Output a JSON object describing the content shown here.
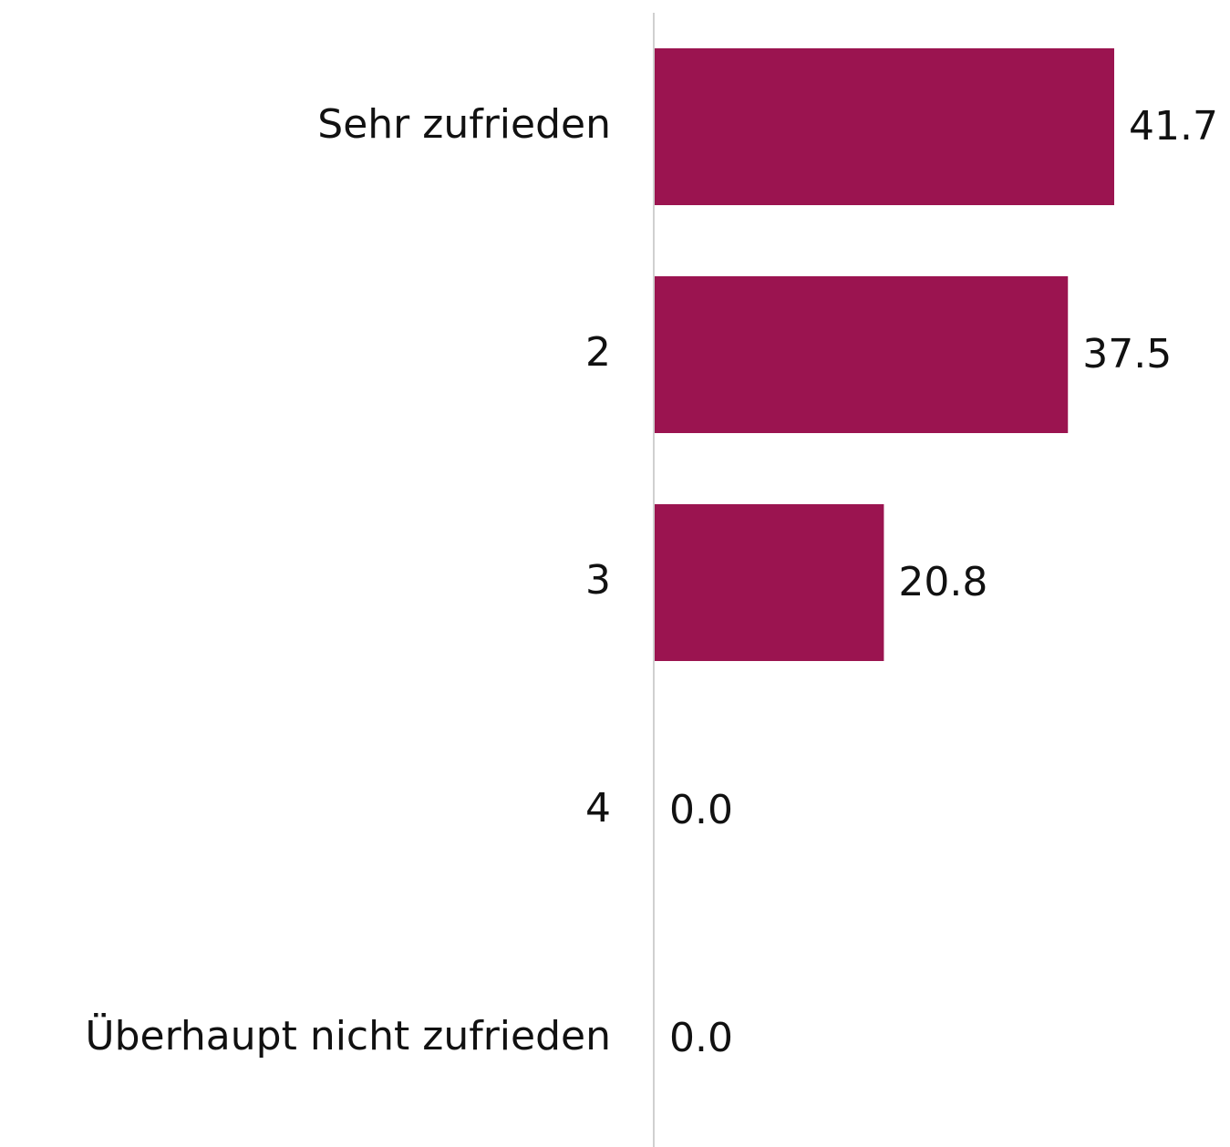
{
  "chart_data": {
    "type": "barh",
    "categories": [
      "Sehr zufrieden",
      "2",
      "3",
      "4",
      "Überhaupt nicht zufrieden"
    ],
    "values": [
      41.7,
      37.5,
      20.8,
      0,
      0
    ],
    "value_labels": [
      "41.7",
      "37.5",
      "20.8",
      "0.0",
      "0.0"
    ],
    "color": "#9b1450"
  }
}
